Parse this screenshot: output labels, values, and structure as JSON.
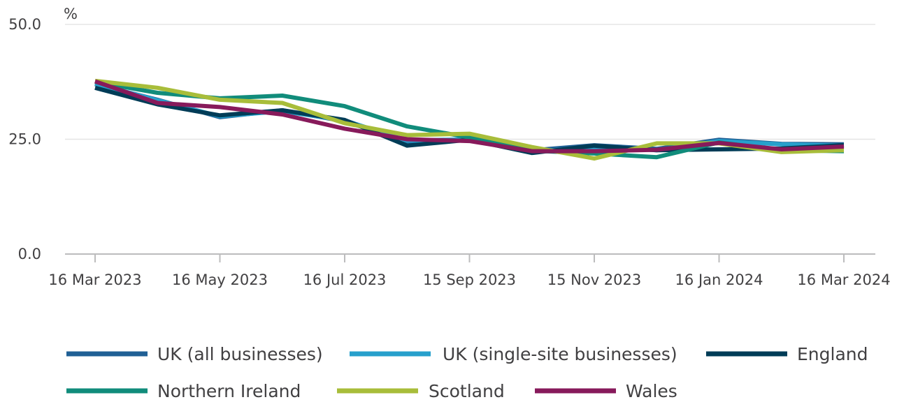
{
  "chart_data": {
    "type": "line",
    "unit_label": "%",
    "ylim": [
      0,
      50
    ],
    "y_ticks": [
      {
        "value": 0,
        "label": "0.0"
      },
      {
        "value": 25,
        "label": "25.0"
      },
      {
        "value": 50,
        "label": "50.0"
      }
    ],
    "x_ticks": [
      {
        "label": "16 Mar 2023",
        "index": 0
      },
      {
        "label": "16 May 2023",
        "index": 2
      },
      {
        "label": "16 Jul 2023",
        "index": 4
      },
      {
        "label": "15 Sep 2023",
        "index": 6
      },
      {
        "label": "15 Nov 2023",
        "index": 8
      },
      {
        "label": "16 Jan 2024",
        "index": 10
      },
      {
        "label": "16 Mar 2024",
        "index": 12
      }
    ],
    "x": [
      "16 Mar 2023",
      "16 Apr 2023",
      "16 May 2023",
      "16 Jun 2023",
      "16 Jul 2023",
      "16 Aug 2023",
      "15 Sep 2023",
      "15 Oct 2023",
      "15 Nov 2023",
      "15 Dec 2023",
      "16 Jan 2024",
      "16 Feb 2024",
      "16 Mar 2024"
    ],
    "grid": true,
    "legend_position": "bottom",
    "series": [
      {
        "name": "UK (all businesses)",
        "color": "#206095",
        "values": [
          37.0,
          33.6,
          29.8,
          31.3,
          28.9,
          24.5,
          24.9,
          22.6,
          23.7,
          22.9,
          24.9,
          24.0,
          23.9
        ]
      },
      {
        "name": "UK (single-site businesses)",
        "color": "#27a0cc",
        "values": [
          37.1,
          33.5,
          30.0,
          31.1,
          29.1,
          24.7,
          25.0,
          22.3,
          23.3,
          22.6,
          24.6,
          23.9,
          23.6
        ]
      },
      {
        "name": "England",
        "color": "#003c57",
        "values": [
          36.2,
          32.6,
          30.2,
          31.3,
          29.2,
          23.6,
          24.9,
          22.0,
          23.6,
          22.6,
          22.8,
          23.0,
          23.7
        ]
      },
      {
        "name": "Northern Ireland",
        "color": "#118c7b",
        "values": [
          37.5,
          35.1,
          33.9,
          34.5,
          32.2,
          27.8,
          25.4,
          22.5,
          21.9,
          21.1,
          24.3,
          22.6,
          22.4
        ]
      },
      {
        "name": "Scotland",
        "color": "#a8bd3a",
        "values": [
          37.7,
          36.2,
          33.6,
          32.9,
          28.5,
          25.9,
          26.2,
          23.3,
          20.8,
          24.1,
          24.1,
          22.2,
          22.6
        ]
      },
      {
        "name": "Wales",
        "color": "#871a5b",
        "values": [
          37.6,
          32.9,
          32.0,
          30.4,
          27.3,
          25.0,
          24.6,
          22.4,
          22.4,
          22.7,
          24.2,
          22.8,
          23.4
        ]
      }
    ]
  }
}
